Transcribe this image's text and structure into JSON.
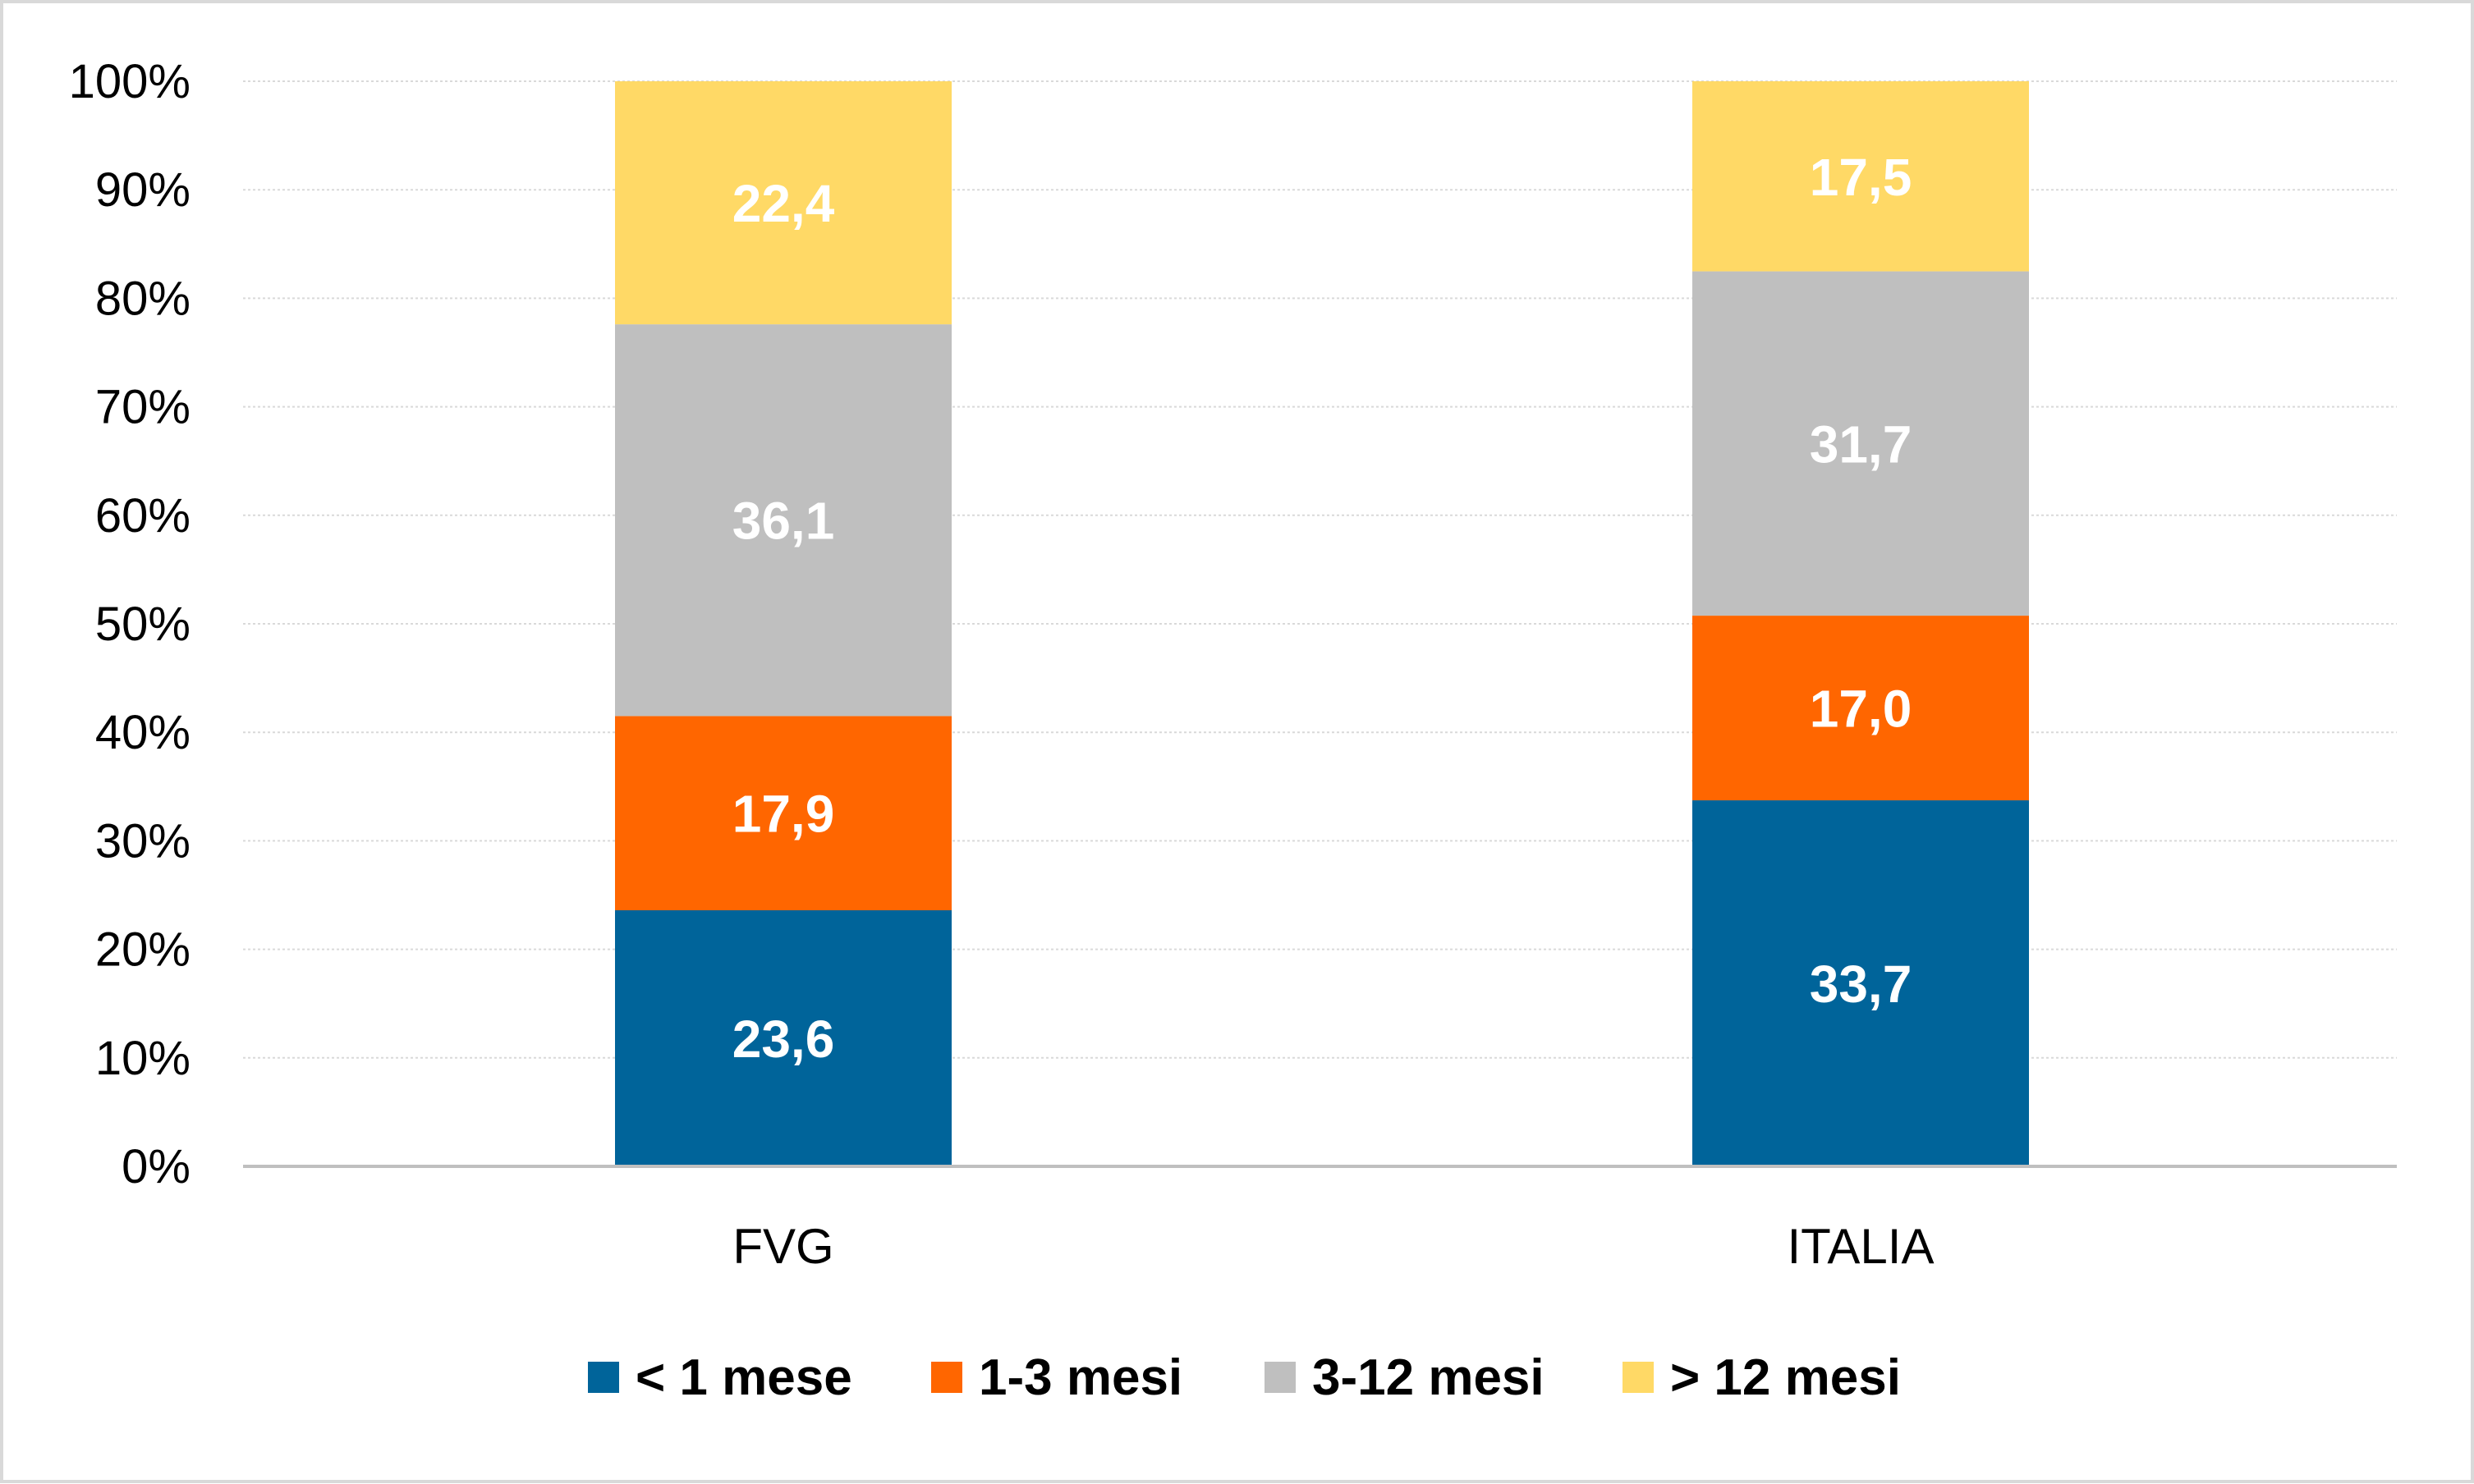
{
  "chart_data": {
    "type": "bar",
    "stacked": true,
    "percent_stacked": true,
    "categories": [
      "FVG",
      "ITALIA"
    ],
    "series": [
      {
        "name": "< 1 mese",
        "color": "#00649a",
        "values": [
          23.6,
          33.7
        ],
        "labels": [
          "23,6",
          "33,7"
        ]
      },
      {
        "name": "1-3 mesi",
        "color": "#ff6600",
        "values": [
          17.9,
          17.0
        ],
        "labels": [
          "17,9",
          "17,0"
        ]
      },
      {
        "name": "3-12 mesi",
        "color": "#bfbfbf",
        "values": [
          36.1,
          31.7
        ],
        "labels": [
          "36,1",
          "31,7"
        ]
      },
      {
        "name": "> 12 mesi",
        "color": "#ffd966",
        "values": [
          22.4,
          17.5
        ],
        "labels": [
          "22,4",
          "17,5"
        ]
      }
    ],
    "yticks": [
      "0%",
      "10%",
      "20%",
      "30%",
      "40%",
      "50%",
      "60%",
      "70%",
      "80%",
      "90%",
      "100%"
    ],
    "ylim": [
      0,
      100
    ],
    "grid": true,
    "legend": "bottom"
  }
}
